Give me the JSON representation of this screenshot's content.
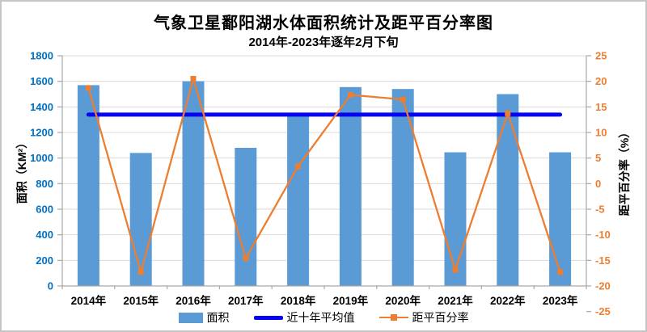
{
  "window": {
    "background": "#FFFFFF",
    "border_color": "#C6C6C6"
  },
  "header": {
    "title": "气象卫星鄱阳湖水体面积统计及距平百分率图",
    "subtitle": "2014年-2023年逐年2月下旬"
  },
  "chart_data": {
    "type": "bar+line combo",
    "categories": [
      "2014年",
      "2015年",
      "2016年",
      "2017年",
      "2018年",
      "2019年",
      "2020年",
      "2021年",
      "2022年",
      "2023年"
    ],
    "series": [
      {
        "name": "面积",
        "type": "bar",
        "axis": "left",
        "color": "#5B9BD5",
        "values": [
          1570,
          1040,
          1600,
          1080,
          1350,
          1555,
          1540,
          1045,
          1500,
          1045
        ]
      },
      {
        "name": "近十年平均值",
        "type": "line",
        "axis": "left",
        "color": "#0404F2",
        "constant_value": 1340
      },
      {
        "name": "距平百分率",
        "type": "line",
        "axis": "right",
        "color": "#ED7D31",
        "marker": "square",
        "values": [
          18,
          -22,
          20,
          -19,
          1,
          16.5,
          15.5,
          -21.5,
          12.5,
          -22
        ]
      }
    ],
    "left_axis": {
      "label": "面积（KM²）",
      "min": 0,
      "max": 1800,
      "step": 200,
      "tick_labels": [
        "1800",
        "1600",
        "1400",
        "1200",
        "1000",
        "800",
        "600",
        "400",
        "200",
        "0"
      ],
      "color": "#0070C0"
    },
    "right_axis": {
      "label": "距平百分率（%）",
      "min": -25,
      "max": 25,
      "step": 5,
      "tick_labels": [
        "25",
        "20",
        "15",
        "10",
        "5",
        "0",
        "-5",
        "-10",
        "-15",
        "-20",
        "-25"
      ],
      "color": "#ED7D31"
    },
    "grid": {
      "horizontal": true,
      "vertical": false,
      "color": "#D9D9D9"
    },
    "axis_line_color": "#A8A8A8",
    "x_label_color": "#000000",
    "legend_position": "bottom",
    "legend": [
      {
        "label": "面积",
        "swatch": "bar"
      },
      {
        "label": "近十年平均值",
        "swatch": "thick-line"
      },
      {
        "label": "距平百分率",
        "swatch": "line-square-marker"
      }
    ]
  }
}
